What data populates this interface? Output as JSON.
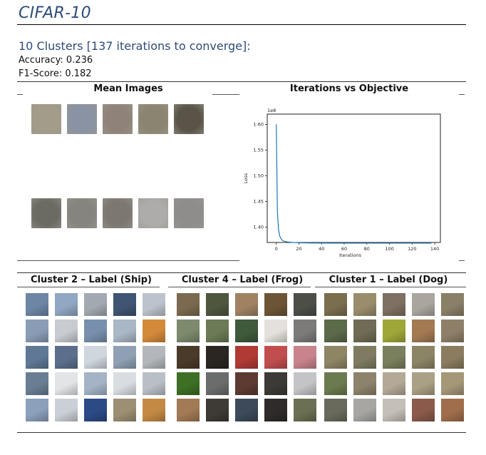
{
  "page": {
    "title": "CIFAR-10",
    "subtitle": "10 Clusters [137 iterations to converge]:",
    "accuracy": "Accuracy: 0.236",
    "f1": "F1-Score: 0.182"
  },
  "sections": {
    "mean_images": "Mean Images",
    "objective": "Iterations vs Objective",
    "cluster_a": "Cluster 2 – Label (Ship)",
    "cluster_b": "Cluster 4 – Label (Frog)",
    "cluster_c": "Cluster 1 – Label (Dog)"
  },
  "mean_image_colors": {
    "row1": [
      "#a39c8a",
      "#8a93a3",
      "#8f8379",
      "#8b8470",
      "#5a5448"
    ],
    "row2": [
      "#6b6a63",
      "#86847f",
      "#7c7770",
      "#aeacaa",
      "#8e8d8c"
    ]
  },
  "chart_data": {
    "type": "line",
    "title": "",
    "xlabel": "Iterations",
    "ylabel": "Loss",
    "y_scale_label": "1e8",
    "x_ticks": [
      0,
      20,
      40,
      60,
      80,
      100,
      120,
      140
    ],
    "y_ticks": [
      1.4,
      1.45,
      1.5,
      1.55,
      1.6
    ],
    "xlim": [
      -8,
      145
    ],
    "ylim": [
      1.37,
      1.62
    ],
    "series": [
      {
        "x": [
          0,
          1,
          2,
          3,
          4,
          5,
          6,
          8,
          10,
          15,
          20,
          30,
          50,
          80,
          110,
          137
        ],
        "values": [
          1.6,
          1.43,
          1.395,
          1.383,
          1.378,
          1.375,
          1.373,
          1.372,
          1.371,
          1.37,
          1.3695,
          1.369,
          1.3688,
          1.3687,
          1.3687,
          1.3687
        ],
        "color": "#1f77b4"
      }
    ]
  },
  "cluster_grids": {
    "ship_palette": [
      "#6d86a6",
      "#90a8c4",
      "#a3a9b0",
      "#3f5573",
      "#bcc3cc",
      "#8a9db5",
      "#c8ccd1",
      "#7890ad",
      "#a9b7c6",
      "#d48a3b",
      "#5f7896",
      "#5b6f8c",
      "#cfd6de",
      "#8fa0b4",
      "#b3b7bb",
      "#6a7e93",
      "#e2e4e6",
      "#a4b4c6",
      "#d9dde2",
      "#b9bfc6",
      "#8ca0bb",
      "#cbd0d6",
      "#2c4a86",
      "#9c8f73",
      "#c48a44"
    ],
    "frog_palette": [
      "#7b6a4f",
      "#4e563e",
      "#a08263",
      "#6c5536",
      "#4b4f48",
      "#7d8a6d",
      "#6b7b55",
      "#3e5a3b",
      "#e4e0dc",
      "#7c7b79",
      "#4a3a2a",
      "#2b2622",
      "#b03b34",
      "#c24d4f",
      "#c9838c",
      "#3d6f24",
      "#6a6d6b",
      "#5d3b32",
      "#3b3a36",
      "#c4c4c6",
      "#a27a56",
      "#3e3a35",
      "#3c4a5a",
      "#2e2b2a",
      "#6b7052"
    ],
    "dog_palette": [
      "#7a6e4e",
      "#9a8d6d",
      "#7e7062",
      "#aaa69f",
      "#8a8068",
      "#5b6b4a",
      "#6f6b55",
      "#9ea838",
      "#a37a52",
      "#8e8068",
      "#8e8565",
      "#7f7b61",
      "#7a7f5e",
      "#8b8565",
      "#8b7c60",
      "#6c7b4f",
      "#8d826a",
      "#b4a896",
      "#aaa085",
      "#a49878",
      "#6a6a5c",
      "#a7a6a3",
      "#c4bfb7",
      "#8b5a4b",
      "#a06e4b"
    ]
  }
}
